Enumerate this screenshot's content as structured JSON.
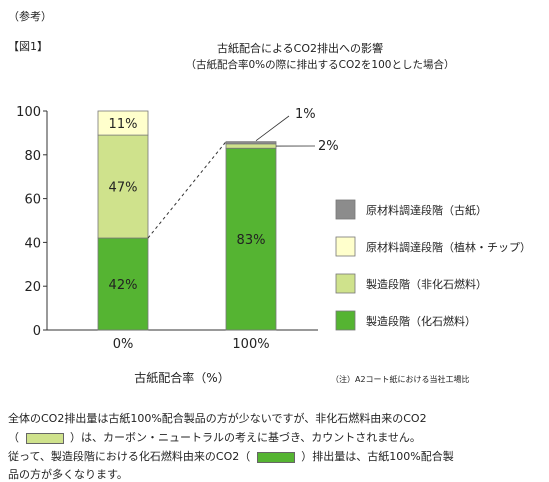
{
  "header": {
    "ref_label": "（参考）",
    "fig_label": "【図1】",
    "title": "古紙配合によるCO2排出への影響",
    "subtitle": "（古紙配合率0%の際に排出するCO2を100とした場合）"
  },
  "chart_data": {
    "type": "bar",
    "stacked": true,
    "categories": [
      "0%",
      "100%"
    ],
    "xlabel": "古紙配合率（%）",
    "ylabel": "",
    "ylim": [
      0,
      100
    ],
    "yticks": [
      0,
      20,
      40,
      60,
      80,
      100
    ],
    "grid": false,
    "legend_position": "right",
    "series": [
      {
        "name": "製造段階（化石燃料）",
        "values": [
          42,
          83
        ],
        "labels": [
          "42%",
          "83%"
        ],
        "color": "#55b432"
      },
      {
        "name": "製造段階（非化石燃料）",
        "values": [
          47,
          2
        ],
        "labels": [
          "47%",
          "2%"
        ],
        "color": "#cfe28c"
      },
      {
        "name": "原材料調達段階（植林・チップ）",
        "values": [
          11,
          0
        ],
        "labels": [
          "11%",
          ""
        ],
        "color": "#ffffcc"
      },
      {
        "name": "原材料調達段階（古紙）",
        "values": [
          0,
          1
        ],
        "labels": [
          "",
          "1%"
        ],
        "color": "#8c8c8c"
      }
    ],
    "annotation": "（注）A2コート紙における当社工場比"
  },
  "notes": {
    "line1": "全体のCO2排出量は古紙100%配合製品の方が少ないですが、非化石燃料由来のCO2",
    "line2a": "（",
    "line2b": "）は、カーボン・ニュートラルの考えに基づき、カウントされません。",
    "line3a": "従って、製造段階における化石燃料由来のCO2（",
    "line3b": "）排出量は、古紙100%配合製",
    "line4": "品の方が多くなります。",
    "chip_nonfossil_color": "#cfe28c",
    "chip_fossil_color": "#55b432"
  }
}
